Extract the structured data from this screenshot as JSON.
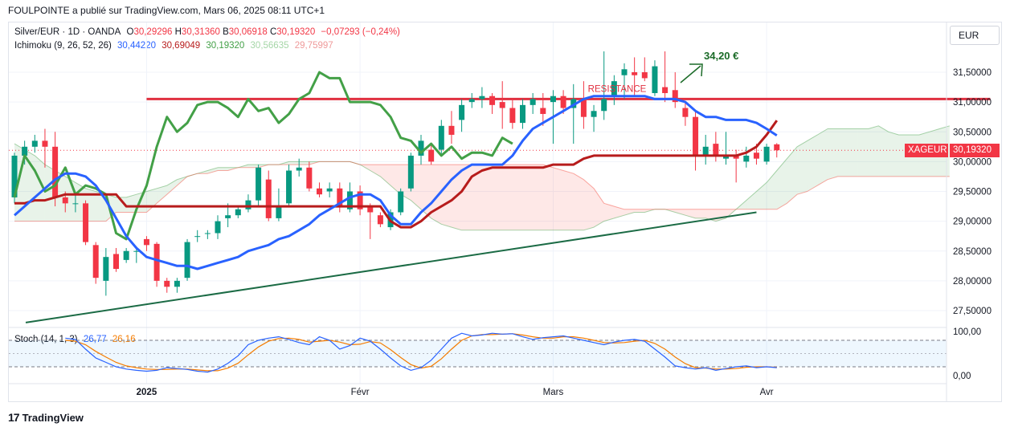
{
  "header": {
    "publisher_line": "FOULPOINTE a publié sur TradingView.com, Mars 06, 2025 08:11 UTC+1"
  },
  "currency_button": "EUR",
  "legend_main": {
    "symbol": "Silver/EUR · 1D · OANDA",
    "o_label": "O",
    "o_value": "30,29296",
    "h_label": "H",
    "h_value": "30,31360",
    "b_label": "B",
    "b_value": "30,06918",
    "c_label": "C",
    "c_value": "30,19320",
    "change": "−0,07293 (−0,24%)"
  },
  "legend_ichimoku": {
    "name": "Ichimoku (9, 26, 52, 26)",
    "v1": "30,44220",
    "v2": "30,69049",
    "v3": "30,19320",
    "v4": "30,56635",
    "v5": "29,75997"
  },
  "legend_stoch": {
    "name": "Stoch (14, 1, 3)",
    "k": "26,77",
    "d": "26,16"
  },
  "price_tag": {
    "symbol": "XAGEUR",
    "value": "30,19320"
  },
  "annotations": {
    "resistance": "RESISTANCE",
    "target": "34,20 €"
  },
  "footer": {
    "brand": "TradingView",
    "logo": "17"
  },
  "colors": {
    "up": "#089981",
    "down": "#f23645",
    "kijun": "#b71c1c",
    "tenkan": "#2962ff",
    "chikou": "#43a047",
    "resistance": "#e03040",
    "trendline": "#1b6b45",
    "stoch_k": "#2962ff",
    "stoch_d": "#f57c00",
    "target": "#1b6b28"
  },
  "chart_data": {
    "type": "candlestick",
    "symbol": "Silver/EUR · 1D · OANDA",
    "price_axis": {
      "ticks": [
        27.5,
        28.0,
        28.5,
        29.0,
        29.5,
        30.0,
        30.5,
        31.0,
        31.5
      ],
      "tick_labels": [
        "27,50000",
        "28,00000",
        "28,50000",
        "29,00000",
        "29,50000",
        "30,00000",
        "30,50000",
        "31,00000",
        "31,50000"
      ]
    },
    "time_axis": {
      "labels": [
        "2025",
        "Févr",
        "Mars",
        "Avr"
      ],
      "label_candle_index": [
        13,
        34,
        53,
        74
      ]
    },
    "stoch_axis": {
      "ticks": [
        0,
        100
      ],
      "tick_labels": [
        "0,00",
        "100,00"
      ],
      "bands": [
        20,
        80
      ]
    },
    "candles": [
      [
        29.4,
        30.15,
        29.3,
        30.1
      ],
      [
        30.1,
        30.35,
        29.95,
        30.25
      ],
      [
        30.25,
        30.45,
        30.15,
        30.35
      ],
      [
        30.35,
        30.55,
        29.9,
        30.25
      ],
      [
        30.25,
        30.5,
        29.25,
        29.4
      ],
      [
        29.4,
        29.5,
        29.15,
        29.3
      ],
      [
        29.3,
        29.45,
        29.15,
        29.3
      ],
      [
        29.3,
        29.35,
        28.6,
        28.65
      ],
      [
        28.6,
        28.65,
        27.95,
        28.05
      ],
      [
        28.0,
        28.55,
        27.75,
        28.4
      ],
      [
        28.45,
        28.55,
        28.15,
        28.2
      ],
      [
        28.35,
        28.55,
        28.3,
        28.5
      ],
      [
        28.5,
        28.55,
        28.3,
        28.5
      ],
      [
        28.7,
        28.75,
        28.5,
        28.6
      ],
      [
        28.62,
        28.65,
        27.9,
        28.0
      ],
      [
        28.0,
        28.05,
        27.8,
        27.9
      ],
      [
        27.9,
        28.05,
        27.8,
        28.0
      ],
      [
        28.05,
        28.7,
        28.0,
        28.65
      ],
      [
        28.75,
        28.85,
        28.65,
        28.75
      ],
      [
        28.8,
        28.85,
        28.7,
        28.8
      ],
      [
        28.8,
        29.1,
        28.7,
        29.0
      ],
      [
        29.05,
        29.3,
        28.9,
        29.1
      ],
      [
        29.1,
        29.25,
        29.05,
        29.2
      ],
      [
        29.2,
        29.45,
        29.15,
        29.35
      ],
      [
        29.35,
        29.95,
        29.25,
        29.9
      ],
      [
        29.7,
        29.85,
        29.0,
        29.05
      ],
      [
        29.05,
        29.55,
        29.0,
        29.25
      ],
      [
        29.3,
        29.95,
        29.25,
        29.85
      ],
      [
        29.85,
        30.05,
        29.75,
        29.9
      ],
      [
        29.9,
        30.0,
        29.5,
        29.55
      ],
      [
        29.55,
        29.65,
        29.4,
        29.45
      ],
      [
        29.5,
        29.65,
        29.4,
        29.55
      ],
      [
        29.55,
        29.65,
        29.15,
        29.25
      ],
      [
        29.2,
        29.65,
        29.15,
        29.5
      ],
      [
        29.5,
        29.6,
        29.1,
        29.2
      ],
      [
        29.25,
        29.3,
        28.7,
        29.15
      ],
      [
        29.1,
        29.15,
        28.9,
        28.95
      ],
      [
        28.9,
        29.2,
        28.85,
        29.15
      ],
      [
        29.15,
        29.55,
        29.1,
        29.5
      ],
      [
        29.55,
        30.15,
        29.5,
        30.1
      ],
      [
        30.1,
        30.45,
        29.95,
        30.35
      ],
      [
        30.2,
        30.3,
        29.95,
        30.0
      ],
      [
        30.2,
        30.7,
        30.1,
        30.6
      ],
      [
        30.6,
        30.85,
        30.3,
        30.45
      ],
      [
        30.7,
        31.05,
        30.5,
        30.95
      ],
      [
        31.0,
        31.15,
        30.9,
        31.05
      ],
      [
        31.05,
        31.25,
        30.9,
        31.1
      ],
      [
        31.1,
        31.15,
        30.8,
        30.95
      ],
      [
        31.0,
        31.35,
        30.55,
        30.9
      ],
      [
        30.9,
        31.05,
        30.55,
        30.65
      ],
      [
        30.65,
        31.05,
        30.55,
        30.95
      ],
      [
        30.95,
        31.15,
        30.8,
        31.05
      ],
      [
        30.9,
        31.15,
        30.6,
        30.8
      ],
      [
        31.0,
        31.2,
        30.3,
        31.1
      ],
      [
        31.1,
        31.2,
        30.8,
        30.9
      ],
      [
        30.9,
        31.3,
        30.3,
        31.05
      ],
      [
        31.05,
        31.35,
        30.55,
        30.75
      ],
      [
        30.75,
        30.95,
        30.5,
        30.85
      ],
      [
        30.85,
        31.85,
        30.7,
        31.05
      ],
      [
        31.1,
        31.45,
        30.95,
        31.35
      ],
      [
        31.45,
        31.65,
        31.05,
        31.55
      ],
      [
        31.5,
        31.75,
        31.1,
        31.45
      ],
      [
        31.5,
        31.75,
        31.35,
        31.4
      ],
      [
        31.15,
        31.7,
        31.1,
        31.6
      ],
      [
        31.25,
        31.85,
        31.0,
        31.15
      ],
      [
        31.2,
        31.5,
        30.9,
        31.0
      ],
      [
        30.9,
        31.0,
        30.6,
        30.75
      ],
      [
        30.75,
        30.85,
        29.85,
        30.1
      ],
      [
        30.1,
        30.45,
        29.95,
        30.25
      ],
      [
        30.3,
        30.5,
        30.0,
        30.1
      ],
      [
        30.05,
        30.5,
        29.95,
        30.1
      ],
      [
        30.1,
        30.2,
        29.65,
        30.05
      ],
      [
        30.0,
        30.25,
        29.9,
        30.1
      ],
      [
        30.15,
        30.3,
        29.95,
        30.05
      ],
      [
        30.0,
        30.3,
        29.95,
        30.25
      ],
      [
        30.29,
        30.31,
        30.07,
        30.19
      ]
    ],
    "ichimoku_lines": {
      "tenkan_blue": {
        "start_index": 0,
        "values": [
          29.1,
          29.25,
          29.4,
          29.55,
          29.7,
          29.8,
          29.8,
          29.75,
          29.6,
          29.35,
          29.05,
          28.75,
          28.55,
          28.4,
          28.35,
          28.3,
          28.25,
          28.25,
          28.2,
          28.25,
          28.3,
          28.35,
          28.4,
          28.5,
          28.55,
          28.6,
          28.7,
          28.75,
          28.85,
          28.95,
          29.1,
          29.2,
          29.3,
          29.4,
          29.45,
          29.45,
          29.35,
          29.1,
          28.95,
          28.95,
          29.15,
          29.3,
          29.5,
          29.7,
          29.85,
          29.95,
          29.95,
          29.95,
          29.95,
          30.1,
          30.35,
          30.55,
          30.65,
          30.75,
          30.85,
          30.95,
          31.05,
          31.1,
          31.1,
          31.1,
          31.1,
          31.1,
          31.1,
          31.05,
          31.05,
          31.05,
          31.0,
          30.85,
          30.75,
          30.75,
          30.7,
          30.7,
          30.7,
          30.65,
          30.55,
          30.44
        ]
      },
      "kijun_red": {
        "start_index": 0,
        "values": [
          29.3,
          29.3,
          29.35,
          29.35,
          29.4,
          29.45,
          29.45,
          29.45,
          29.45,
          29.45,
          29.45,
          29.25,
          29.25,
          29.25,
          29.25,
          29.25,
          29.25,
          29.25,
          29.25,
          29.25,
          29.25,
          29.25,
          29.25,
          29.25,
          29.25,
          29.25,
          29.25,
          29.25,
          29.25,
          29.25,
          29.25,
          29.25,
          29.25,
          29.25,
          29.25,
          29.25,
          29.25,
          29.0,
          28.9,
          28.9,
          29.0,
          29.15,
          29.25,
          29.35,
          29.5,
          29.75,
          29.85,
          29.9,
          29.9,
          29.9,
          29.9,
          29.9,
          29.9,
          29.95,
          29.95,
          29.95,
          30.05,
          30.1,
          30.1,
          30.1,
          30.1,
          30.1,
          30.1,
          30.1,
          30.1,
          30.1,
          30.1,
          30.1,
          30.1,
          30.1,
          30.1,
          30.1,
          30.15,
          30.25,
          30.45,
          30.69
        ]
      },
      "chikou_green": {
        "start_index": 0,
        "values": [
          29.4,
          30.1,
          29.85,
          29.5,
          29.6,
          29.9,
          29.45,
          29.6,
          29.55,
          29.45,
          28.8,
          28.7,
          29.2,
          29.6,
          30.25,
          30.75,
          30.5,
          30.65,
          30.95,
          31.0,
          31.0,
          30.9,
          30.75,
          31.05,
          30.85,
          30.9,
          30.65,
          30.8,
          31.05,
          31.15,
          31.5,
          31.4,
          31.4,
          31.0,
          31.0,
          31.0,
          30.95,
          30.75,
          30.4,
          30.35,
          30.15,
          30.3,
          30.1,
          30.25,
          30.05,
          30.15,
          30.15,
          30.1,
          30.4,
          30.3
        ]
      },
      "senkou_a_green_cloud_edge": {
        "start_index": 0,
        "values": [
          30.3,
          30.2,
          30.1,
          29.95,
          29.85,
          29.75,
          29.65,
          29.55,
          29.5,
          29.45,
          29.4,
          29.4,
          29.45,
          29.5,
          29.55,
          29.6,
          29.7,
          29.75,
          29.8,
          29.85,
          29.9,
          29.9,
          29.9,
          29.95,
          29.95,
          29.95,
          29.95,
          30.0,
          30.0,
          30.0,
          30.0,
          30.0,
          30.0,
          30.0,
          29.95,
          29.85,
          29.75,
          29.6,
          29.45,
          29.35,
          29.2,
          29.05,
          28.95,
          28.9,
          28.85,
          28.85,
          28.85,
          28.85,
          28.85,
          28.85,
          28.85,
          28.85,
          28.85,
          28.85,
          28.85,
          28.85,
          28.85,
          28.9,
          29.0,
          29.05,
          29.1,
          29.15,
          29.15,
          29.2,
          29.2,
          29.15,
          29.1,
          29.05,
          29.05,
          29.0,
          29.05,
          29.2,
          29.35,
          29.5,
          29.65,
          29.85,
          30.05,
          30.25,
          30.35,
          30.45,
          30.55,
          30.55,
          30.55,
          30.55,
          30.55,
          30.6,
          30.5,
          30.45,
          30.45,
          30.45,
          30.5,
          30.55,
          30.6
        ]
      },
      "senkou_b_red_cloud_edge": {
        "start_index": 0,
        "values": [
          29.0,
          29.0,
          29.0,
          29.0,
          29.0,
          29.0,
          29.0,
          29.0,
          29.0,
          29.0,
          29.15,
          29.15,
          29.15,
          29.15,
          29.3,
          29.45,
          29.6,
          29.75,
          29.8,
          29.8,
          29.85,
          29.85,
          29.9,
          29.9,
          29.9,
          29.95,
          29.95,
          29.95,
          29.95,
          29.95,
          30.0,
          30.0,
          30.0,
          30.0,
          29.95,
          29.95,
          29.95,
          29.95,
          29.95,
          29.95,
          29.95,
          29.95,
          29.95,
          29.95,
          29.95,
          29.95,
          29.95,
          29.95,
          29.95,
          29.95,
          29.95,
          29.95,
          29.95,
          29.9,
          29.85,
          29.8,
          29.7,
          29.55,
          29.3,
          29.25,
          29.2,
          29.2,
          29.2,
          29.2,
          29.2,
          29.2,
          29.2,
          29.2,
          29.2,
          29.2,
          29.2,
          29.2,
          29.2,
          29.2,
          29.2,
          29.2,
          29.3,
          29.45,
          29.5,
          29.6,
          29.7,
          29.75,
          29.75,
          29.75,
          29.75,
          29.75,
          29.75,
          29.75,
          29.75,
          29.75,
          29.75,
          29.75,
          29.75
        ]
      }
    },
    "stochastic": {
      "k": [
        85,
        82,
        60,
        40,
        30,
        20,
        15,
        12,
        10,
        12,
        18,
        16,
        14,
        10,
        8,
        15,
        28,
        45,
        70,
        80,
        85,
        88,
        82,
        75,
        70,
        88,
        80,
        60,
        68,
        85,
        78,
        60,
        40,
        22,
        12,
        18,
        35,
        60,
        85,
        96,
        90,
        92,
        96,
        94,
        95,
        88,
        82,
        86,
        88,
        90,
        85,
        80,
        75,
        70,
        76,
        80,
        82,
        78,
        60,
        42,
        22,
        18,
        15,
        18,
        12,
        16,
        20,
        22,
        18,
        20,
        18
      ],
      "d": [
        80,
        78,
        70,
        55,
        42,
        30,
        22,
        18,
        15,
        14,
        14,
        15,
        15,
        13,
        11,
        11,
        17,
        28,
        47,
        65,
        78,
        84,
        85,
        82,
        76,
        78,
        80,
        76,
        70,
        71,
        77,
        74,
        59,
        41,
        25,
        17,
        21,
        38,
        60,
        80,
        90,
        93,
        93,
        94,
        95,
        92,
        88,
        85,
        85,
        88,
        88,
        85,
        80,
        75,
        74,
        75,
        78,
        80,
        73,
        60,
        42,
        27,
        18,
        17,
        15,
        15,
        16,
        19,
        20,
        20,
        19
      ]
    },
    "drawings": {
      "resistance_level": 31.05,
      "resistance_start_index": 13,
      "resistance_end_index": 96,
      "trendline": {
        "from": {
          "index": 0,
          "price": 27.3
        },
        "to": {
          "index": 73,
          "price": 29.15
        }
      },
      "target": 34.2
    }
  }
}
